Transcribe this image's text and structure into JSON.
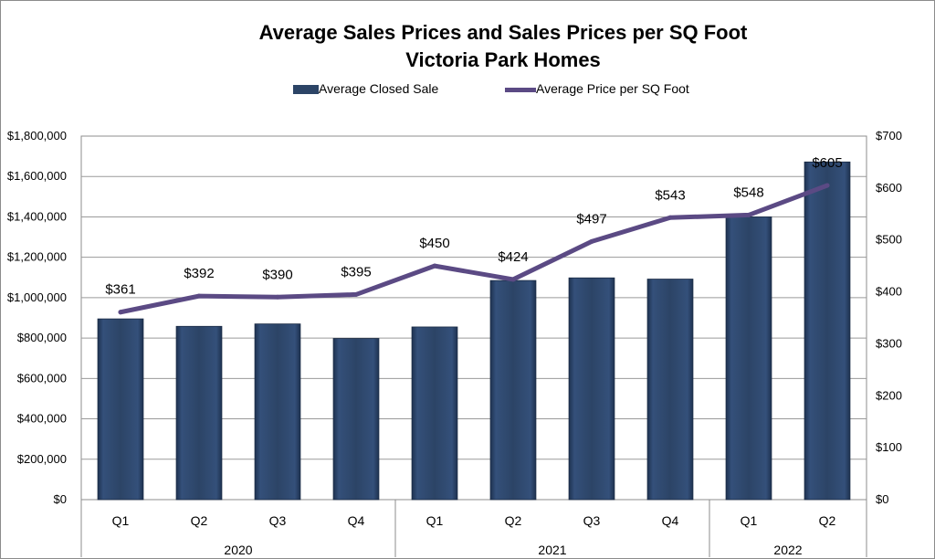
{
  "chart_data": {
    "type": "bar",
    "title": "Average Sales Prices and Sales Prices per SQ Foot",
    "subtitle": "Victoria Park Homes",
    "categories": [
      "Q1",
      "Q2",
      "Q3",
      "Q4",
      "Q1",
      "Q2",
      "Q3",
      "Q4",
      "Q1",
      "Q2"
    ],
    "groups": [
      {
        "label": "2020",
        "count": 4
      },
      {
        "label": "2021",
        "count": 4
      },
      {
        "label": "2022",
        "count": 2
      }
    ],
    "series": [
      {
        "name": "Average Closed Sale",
        "type": "bar",
        "axis": "left",
        "color": "#2c4466",
        "values": [
          895000,
          858000,
          870000,
          798000,
          855000,
          1085000,
          1098000,
          1092000,
          1400000,
          1672000
        ]
      },
      {
        "name": "Average Price per SQ Foot",
        "type": "line",
        "axis": "right",
        "color": "#5b4a84",
        "values": [
          361,
          392,
          390,
          395,
          450,
          424,
          497,
          543,
          548,
          605
        ],
        "labels": [
          "$361",
          "$392",
          "$390",
          "$395",
          "$450",
          "$424",
          "$497",
          "$543",
          "$548",
          "$605"
        ]
      }
    ],
    "y_left": {
      "min": 0,
      "max": 1800000,
      "ticks": [
        "$0",
        "$200,000",
        "$400,000",
        "$600,000",
        "$800,000",
        "$1,000,000",
        "$1,200,000",
        "$1,400,000",
        "$1,600,000",
        "$1,800,000"
      ]
    },
    "y_right": {
      "min": 0,
      "max": 700,
      "ticks": [
        "$0",
        "$100",
        "$200",
        "$300",
        "$400",
        "$500",
        "$600",
        "$700"
      ]
    },
    "grid": true,
    "legend": "top"
  }
}
